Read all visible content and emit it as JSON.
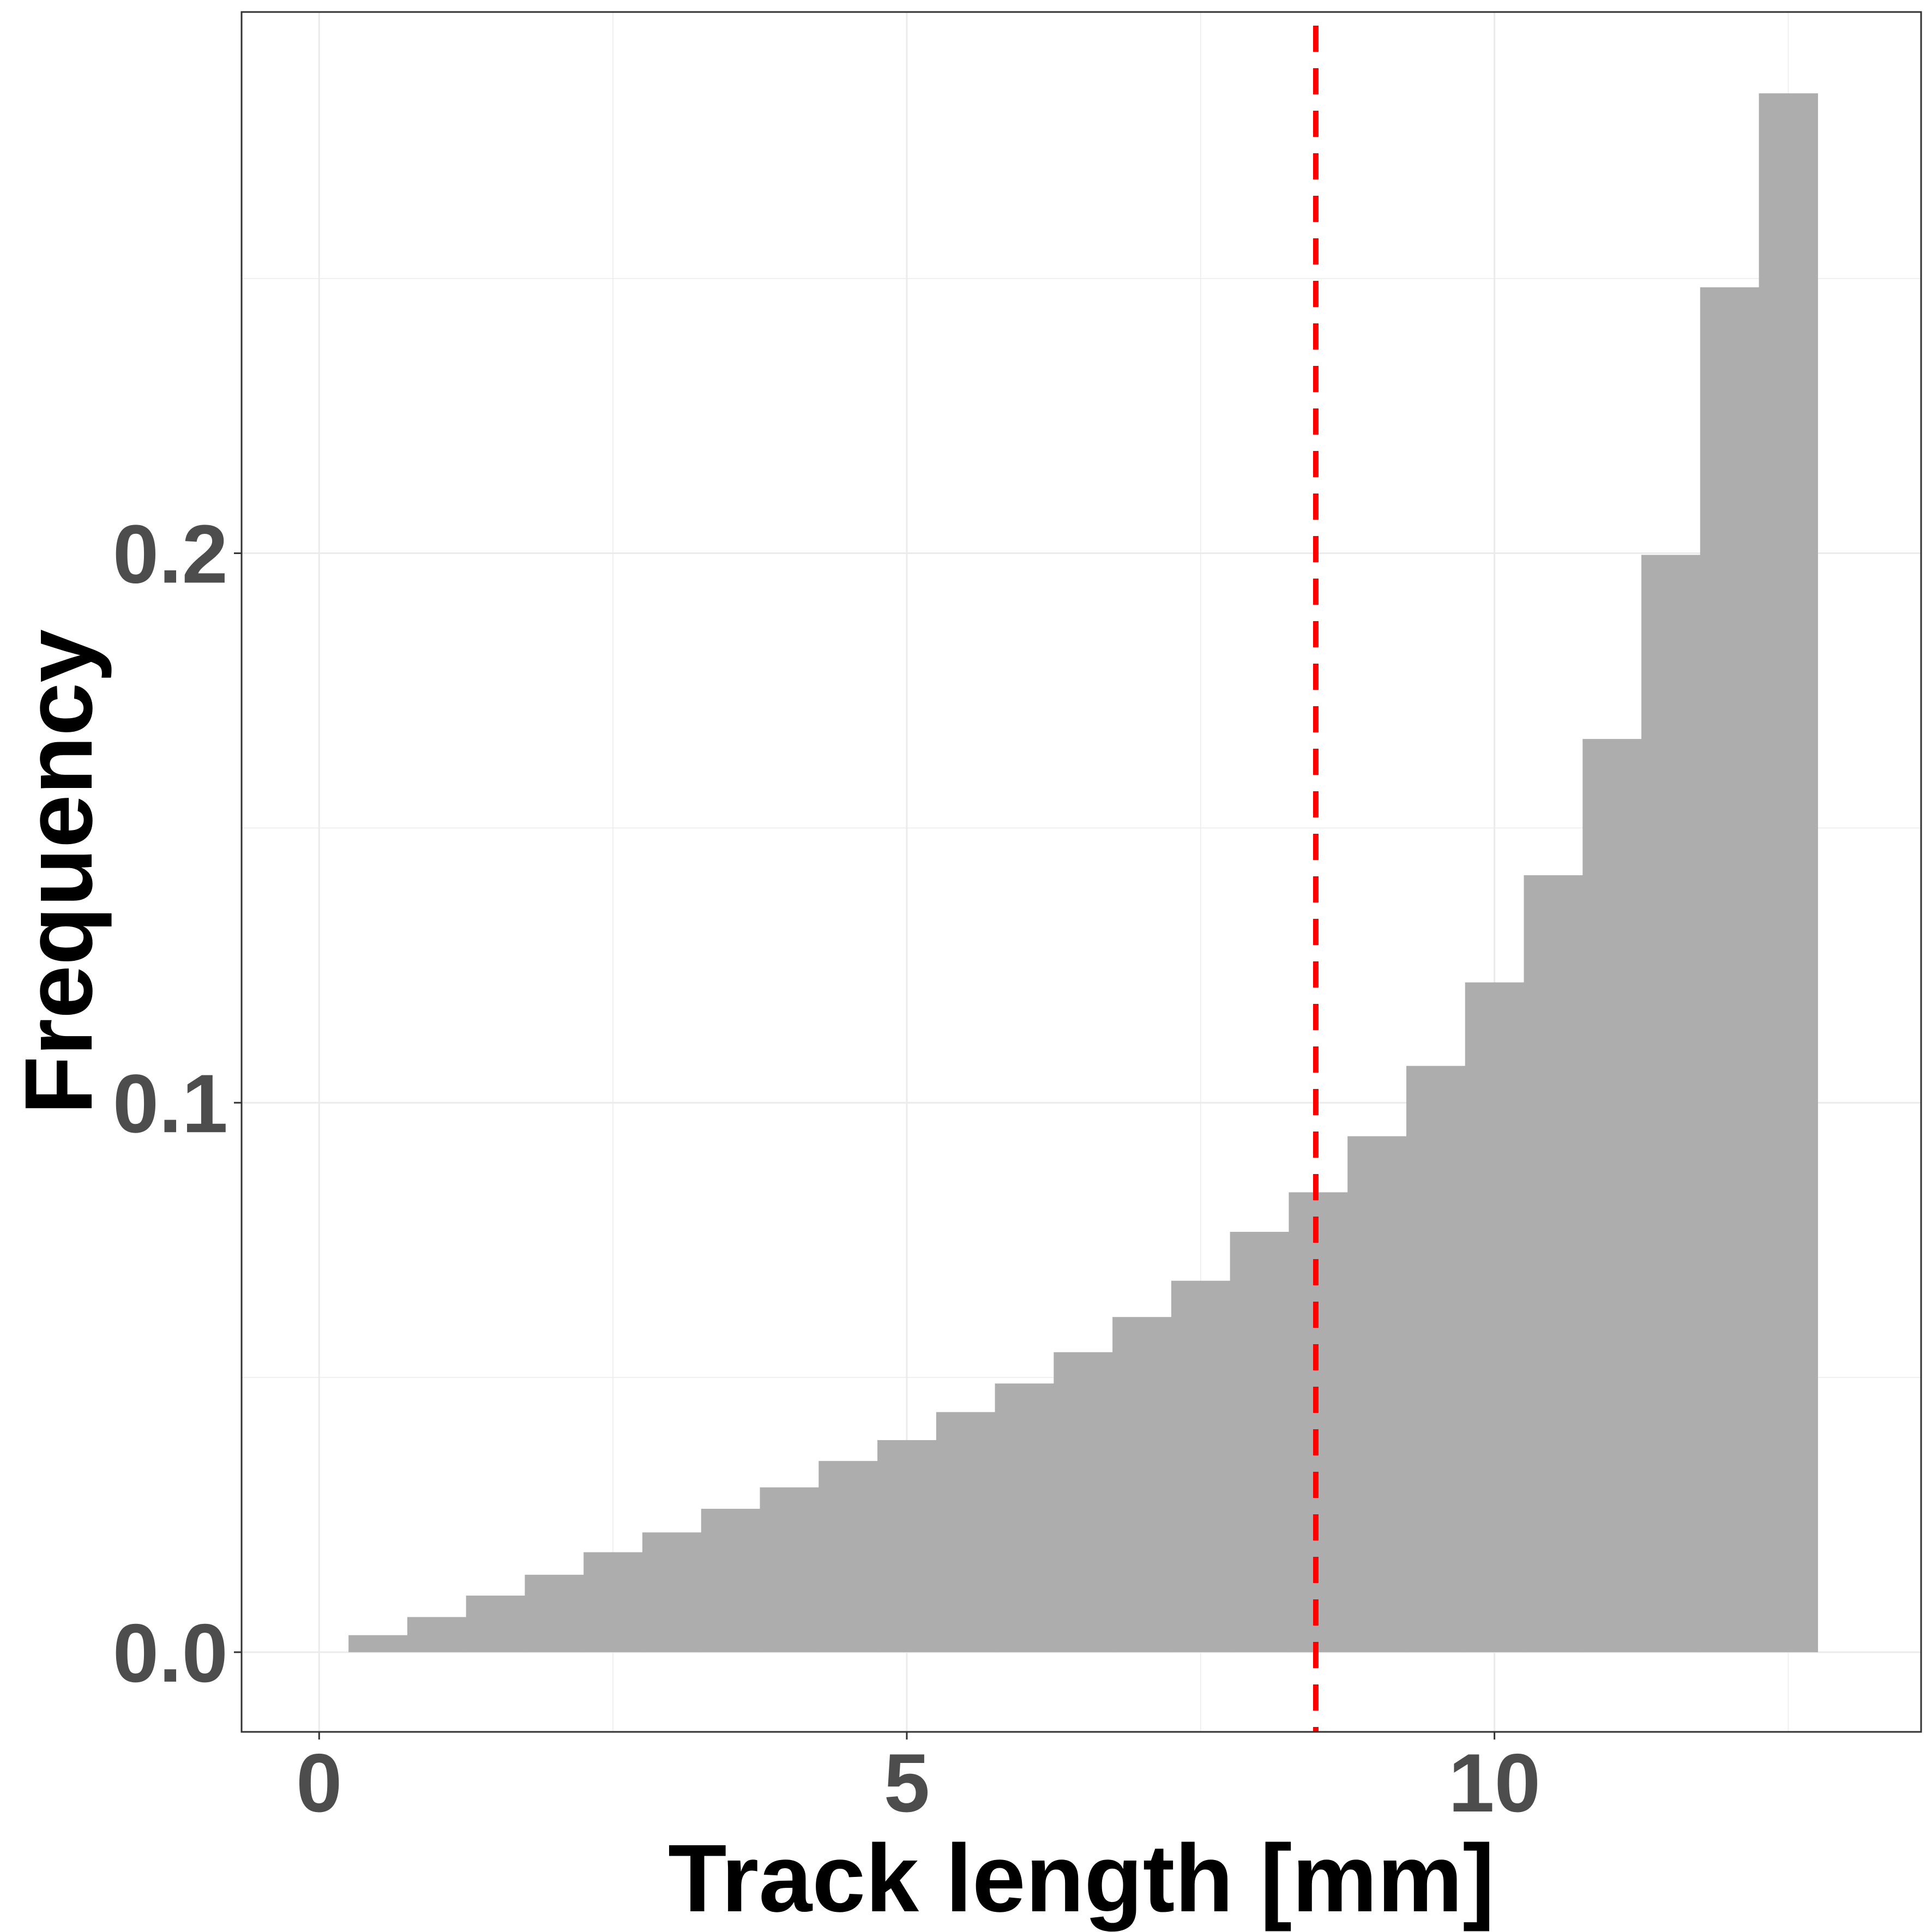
{
  "chart_data": {
    "type": "bar",
    "subtype": "histogram",
    "title": "",
    "xlabel": "Track length [mm]",
    "ylabel": "Frequency",
    "xlim": [
      -0.66,
      13.63
    ],
    "ylim": [
      -0.0145,
      0.2985
    ],
    "x_ticks": [
      0,
      5,
      10
    ],
    "x_tick_labels": [
      "0",
      "5",
      "10"
    ],
    "y_ticks": [
      0.0,
      0.1,
      0.2
    ],
    "y_tick_labels": [
      "0.0",
      "0.1",
      "0.2"
    ],
    "grid": true,
    "legend": "none",
    "bin_width": 0.5,
    "bins": [
      {
        "x0": 0.25,
        "x1": 0.75,
        "value": 0.0031
      },
      {
        "x0": 0.75,
        "x1": 1.25,
        "value": 0.0064
      },
      {
        "x0": 1.25,
        "x1": 1.75,
        "value": 0.0103
      },
      {
        "x0": 1.75,
        "x1": 2.25,
        "value": 0.0141
      },
      {
        "x0": 2.25,
        "x1": 2.75,
        "value": 0.0182
      },
      {
        "x0": 2.75,
        "x1": 3.25,
        "value": 0.0218
      },
      {
        "x0": 3.25,
        "x1": 3.75,
        "value": 0.0261
      },
      {
        "x0": 3.75,
        "x1": 4.25,
        "value": 0.03
      },
      {
        "x0": 4.25,
        "x1": 4.75,
        "value": 0.0348
      },
      {
        "x0": 4.75,
        "x1": 5.25,
        "value": 0.0386
      },
      {
        "x0": 5.25,
        "x1": 5.75,
        "value": 0.0437
      },
      {
        "x0": 5.75,
        "x1": 6.25,
        "value": 0.0489
      },
      {
        "x0": 6.25,
        "x1": 6.75,
        "value": 0.0546
      },
      {
        "x0": 6.75,
        "x1": 7.25,
        "value": 0.061
      },
      {
        "x0": 7.25,
        "x1": 7.75,
        "value": 0.0676
      },
      {
        "x0": 7.75,
        "x1": 8.25,
        "value": 0.0765
      },
      {
        "x0": 8.25,
        "x1": 8.75,
        "value": 0.0837
      },
      {
        "x0": 8.75,
        "x1": 9.25,
        "value": 0.0939
      },
      {
        "x0": 9.25,
        "x1": 9.75,
        "value": 0.1067
      },
      {
        "x0": 9.75,
        "x1": 10.25,
        "value": 0.1219
      },
      {
        "x0": 10.25,
        "x1": 10.75,
        "value": 0.1414
      },
      {
        "x0": 10.75,
        "x1": 11.25,
        "value": 0.1662
      },
      {
        "x0": 11.25,
        "x1": 11.75,
        "value": 0.1997
      },
      {
        "x0": 11.75,
        "x1": 12.25,
        "value": 0.2484
      },
      {
        "x0": 12.25,
        "x1": 12.75,
        "value": 0.2837
      }
    ],
    "vline": {
      "x": 8.48,
      "style": "dashed"
    },
    "colors": {
      "bar": "#adadad",
      "vline": "#ff0000",
      "grid": "#ebebeb",
      "panel_border": "#333333",
      "tick_label": "#4d4d4d",
      "axis_title": "#000000"
    }
  }
}
